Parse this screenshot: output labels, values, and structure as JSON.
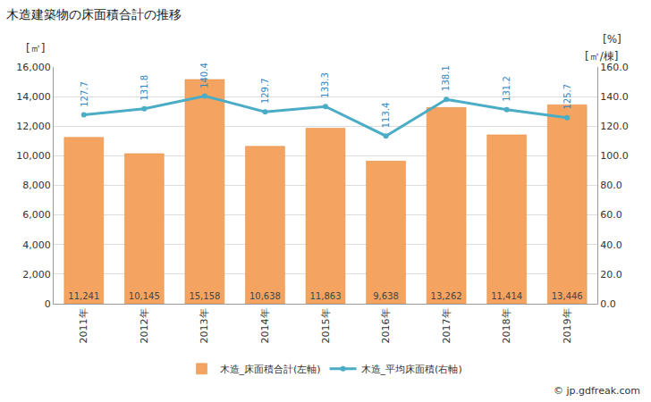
{
  "chart_data": {
    "type": "bar",
    "title": "木造建築物の床面積合計の推移",
    "ylabel": "[㎡]",
    "y2label": "[㎡/棟]",
    "y2unit": "[%]",
    "source": "© jp.gdfreak.com",
    "categories": [
      "2011年",
      "2012年",
      "2013年",
      "2014年",
      "2015年",
      "2016年",
      "2017年",
      "2018年",
      "2019年"
    ],
    "series": [
      {
        "name": "木造_床面積合計(左軸)",
        "type": "bar",
        "color": "#f4a460",
        "values": [
          11241,
          10145,
          15158,
          10638,
          11863,
          9638,
          13262,
          11414,
          13446
        ],
        "value_labels": [
          "11,241",
          "10,145",
          "15,158",
          "10,638",
          "11,863",
          "9,638",
          "13,262",
          "11,414",
          "13,446"
        ]
      },
      {
        "name": "木造_平均床面積(右軸)",
        "type": "line",
        "axis": "y2",
        "color": "#4bacc6",
        "marker": "circle",
        "values": [
          127.7,
          131.8,
          140.4,
          129.7,
          133.3,
          113.4,
          138.1,
          131.2,
          125.7
        ]
      }
    ],
    "ylim": [
      0,
      16000
    ],
    "yticks": [
      0,
      {
        "value": 2000,
        "label": "2,000"
      },
      {
        "value": 4000,
        "label": "4,000"
      },
      {
        "value": 6000,
        "label": "6,000"
      },
      {
        "value": 8000,
        "label": "8,000"
      },
      {
        "value": 10000,
        "label": "10,000"
      },
      {
        "value": 12000,
        "label": "12,000"
      },
      {
        "value": 14000,
        "label": "14,000"
      },
      {
        "value": 16000,
        "label": "16,000"
      }
    ],
    "y2lim": [
      0,
      160
    ],
    "y2ticks": [
      {
        "value": 0,
        "label": "0.0"
      },
      {
        "value": 20,
        "label": "20.0"
      },
      {
        "value": 40,
        "label": "40.0"
      },
      {
        "value": 60,
        "label": "60.0"
      },
      {
        "value": 80,
        "label": "80.0"
      },
      {
        "value": 100,
        "label": "100.0"
      },
      {
        "value": 120,
        "label": "120.0"
      },
      {
        "value": 140,
        "label": "140.0"
      },
      {
        "value": 160,
        "label": "160.0"
      }
    ],
    "grid": true,
    "data_labels": true,
    "legend": "bottom"
  }
}
